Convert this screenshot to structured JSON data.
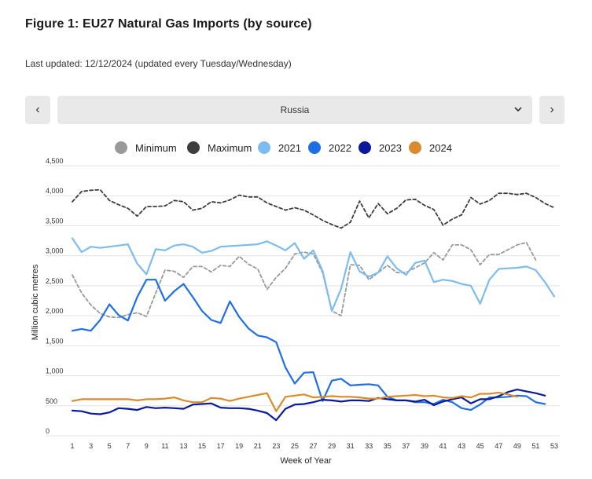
{
  "header": {
    "title": "Figure 1: EU27 Natural Gas Imports (by source)",
    "subtitle": "Last updated: 12/12/2024 (updated every Tuesday/Wednesday)"
  },
  "selector": {
    "value": "Russia",
    "prev_icon": "chevron-left-icon",
    "next_icon": "chevron-right-icon",
    "dropdown_icon": "chevron-down-icon",
    "prev_label": "‹",
    "next_label": "›"
  },
  "chart_data": {
    "type": "line",
    "title": "",
    "xlabel": "Week of Year",
    "ylabel": "Million cubic metres",
    "xlim": [
      1,
      53
    ],
    "ylim": [
      0,
      4500
    ],
    "x_ticks": [
      1,
      3,
      5,
      7,
      9,
      11,
      13,
      15,
      17,
      19,
      21,
      23,
      25,
      27,
      29,
      31,
      33,
      35,
      37,
      39,
      41,
      43,
      45,
      47,
      49,
      51,
      53
    ],
    "y_ticks": [
      0,
      500,
      1000,
      1500,
      2000,
      2500,
      3000,
      3500,
      4000,
      4500
    ],
    "y_tick_labels": [
      "0",
      "500",
      "1,000",
      "1,500",
      "2,000",
      "2,500",
      "3,000",
      "3,500",
      "4,000",
      "4,500"
    ],
    "grid": "horizontal",
    "legend_position": "top",
    "series": [
      {
        "name": "Minimum",
        "color": "#999999",
        "style": "dashed",
        "values": [
          2680,
          2380,
          2180,
          2040,
          1980,
          1970,
          2020,
          2050,
          1990,
          2380,
          2760,
          2740,
          2640,
          2820,
          2820,
          2730,
          2840,
          2820,
          2990,
          2860,
          2780,
          2440,
          2640,
          2790,
          3030,
          3060,
          3030,
          2720,
          2080,
          2000,
          2850,
          2840,
          2600,
          2720,
          2840,
          2720,
          2720,
          2800,
          2880,
          3050,
          2930,
          3180,
          3180,
          3100,
          2850,
          3020,
          3020,
          3100,
          3180,
          3220,
          2930,
          null,
          null
        ]
      },
      {
        "name": "Maximum",
        "color": "#3d3d3d",
        "style": "dashed",
        "values": [
          3900,
          4070,
          4090,
          4100,
          3920,
          3850,
          3790,
          3660,
          3820,
          3820,
          3830,
          3920,
          3900,
          3760,
          3790,
          3900,
          3880,
          3930,
          4010,
          3980,
          3980,
          3880,
          3820,
          3760,
          3800,
          3760,
          3680,
          3590,
          3520,
          3460,
          3560,
          3910,
          3630,
          3870,
          3700,
          3790,
          3930,
          3940,
          3840,
          3770,
          3510,
          3610,
          3680,
          3970,
          3860,
          3920,
          4040,
          4040,
          4020,
          4040,
          3970,
          3870,
          3800
        ]
      },
      {
        "name": "2021",
        "color": "#7cbcf1",
        "style": "solid",
        "values": [
          3290,
          3060,
          3150,
          3130,
          3150,
          3170,
          3190,
          2870,
          2690,
          3110,
          3090,
          3170,
          3190,
          3150,
          3050,
          3080,
          3150,
          3160,
          3170,
          3180,
          3190,
          3240,
          3170,
          3090,
          3210,
          2950,
          3090,
          2750,
          2080,
          2450,
          3060,
          2740,
          2650,
          2720,
          2990,
          2790,
          2680,
          2880,
          2920,
          2560,
          2600,
          2580,
          2530,
          2500,
          2200,
          2600,
          2780,
          2790,
          2800,
          2820,
          2760,
          2560,
          2320
        ]
      },
      {
        "name": "2022",
        "color": "#1e6fe6",
        "style": "solid",
        "values": [
          1750,
          1780,
          1750,
          1930,
          2190,
          2010,
          1920,
          2310,
          2600,
          2600,
          2250,
          2410,
          2530,
          2310,
          2080,
          1930,
          1880,
          2240,
          1980,
          1790,
          1670,
          1640,
          1560,
          1140,
          870,
          1050,
          1060,
          580,
          920,
          950,
          840,
          850,
          860,
          840,
          650,
          590,
          590,
          560,
          560,
          530,
          600,
          560,
          460,
          430,
          520,
          640,
          640,
          650,
          670,
          660,
          560,
          530,
          null
        ]
      },
      {
        "name": "2023",
        "color": "#0a1a9c",
        "style": "solid",
        "values": [
          420,
          410,
          370,
          360,
          390,
          460,
          450,
          430,
          480,
          460,
          470,
          460,
          450,
          520,
          530,
          540,
          470,
          460,
          460,
          450,
          420,
          380,
          260,
          450,
          520,
          530,
          560,
          600,
          590,
          570,
          590,
          590,
          580,
          630,
          610,
          590,
          590,
          570,
          600,
          510,
          570,
          610,
          640,
          540,
          610,
          610,
          660,
          730,
          770,
          740,
          710,
          670,
          null
        ]
      },
      {
        "name": "2024",
        "color": "#d98c2e",
        "style": "solid",
        "values": [
          580,
          610,
          610,
          610,
          610,
          610,
          610,
          590,
          610,
          610,
          620,
          640,
          590,
          560,
          560,
          630,
          620,
          580,
          620,
          650,
          680,
          710,
          410,
          650,
          670,
          690,
          640,
          650,
          660,
          650,
          650,
          640,
          620,
          620,
          650,
          660,
          670,
          680,
          660,
          670,
          640,
          630,
          660,
          640,
          700,
          700,
          720,
          690,
          650,
          null,
          null,
          null,
          null
        ]
      }
    ]
  }
}
